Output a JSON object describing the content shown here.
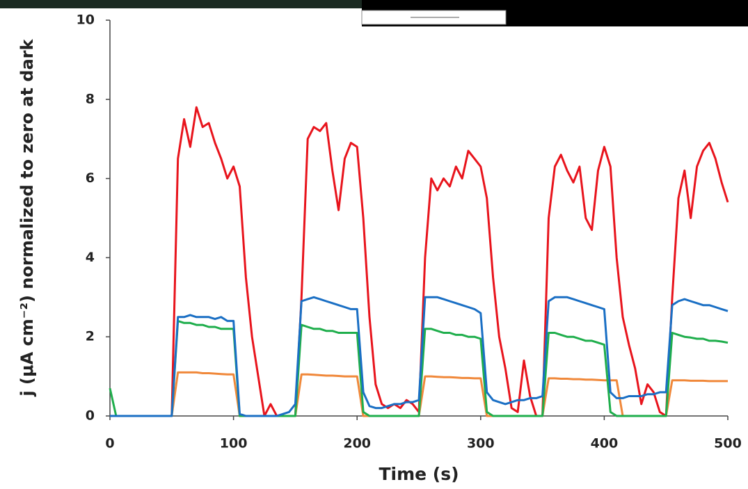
{
  "chart_data": {
    "type": "line",
    "ylabel": "j (μA cm⁻²) normalized to zero at dark",
    "xlabel": "Time (s)",
    "xlim": [
      0,
      500
    ],
    "xticks": [
      0,
      100,
      200,
      300,
      400,
      500
    ],
    "ylim": [
      0,
      10
    ],
    "yticks": [
      0,
      2,
      4,
      6,
      8,
      10
    ],
    "x": [
      0,
      5,
      10,
      15,
      20,
      25,
      30,
      35,
      40,
      45,
      50,
      55,
      60,
      65,
      70,
      75,
      80,
      85,
      90,
      95,
      100,
      105,
      110,
      115,
      120,
      125,
      130,
      135,
      140,
      145,
      150,
      155,
      160,
      165,
      170,
      175,
      180,
      185,
      190,
      195,
      200,
      205,
      210,
      215,
      220,
      225,
      230,
      235,
      240,
      245,
      250,
      255,
      260,
      265,
      270,
      275,
      280,
      285,
      290,
      295,
      300,
      305,
      310,
      315,
      320,
      325,
      330,
      335,
      340,
      345,
      350,
      355,
      360,
      365,
      370,
      375,
      380,
      385,
      390,
      395,
      400,
      405,
      410,
      415,
      420,
      425,
      430,
      435,
      440,
      445,
      450,
      455,
      460,
      465,
      470,
      475,
      480,
      485,
      490,
      495,
      500
    ],
    "series": [
      {
        "color": "#e8141c",
        "values": [
          0,
          0,
          0,
          0,
          0,
          0,
          0,
          0,
          0,
          0,
          0,
          6.5,
          7.5,
          6.8,
          7.8,
          7.3,
          7.4,
          6.9,
          6.5,
          6.0,
          6.3,
          5.8,
          3.5,
          2.0,
          1.0,
          0,
          0.3,
          0,
          0,
          0,
          0,
          3.0,
          7.0,
          7.3,
          7.2,
          7.4,
          6.2,
          5.2,
          6.5,
          6.9,
          6.8,
          5.0,
          2.5,
          0.8,
          0.3,
          0.2,
          0.3,
          0.2,
          0.4,
          0.3,
          0.1,
          4.0,
          6.0,
          5.7,
          6.0,
          5.8,
          6.3,
          6.0,
          6.7,
          6.5,
          6.3,
          5.5,
          3.5,
          2.0,
          1.2,
          0.2,
          0.1,
          1.4,
          0.5,
          0,
          0,
          5.0,
          6.3,
          6.6,
          6.2,
          5.9,
          6.3,
          5.0,
          4.7,
          6.2,
          6.8,
          6.3,
          4.0,
          2.5,
          1.8,
          1.2,
          0.3,
          0.8,
          0.6,
          0.1,
          0,
          3.0,
          5.5,
          6.2,
          5.0,
          6.3,
          6.7,
          6.9,
          6.5,
          5.9,
          5.4
        ]
      },
      {
        "color": "#f0883a",
        "values": [
          0,
          0,
          0,
          0,
          0,
          0,
          0,
          0,
          0,
          0,
          0,
          1.1,
          1.1,
          1.1,
          1.1,
          1.08,
          1.08,
          1.07,
          1.06,
          1.05,
          1.05,
          0,
          0,
          0,
          0,
          0,
          0,
          0,
          0,
          0,
          0,
          1.05,
          1.05,
          1.04,
          1.03,
          1.02,
          1.02,
          1.01,
          1.0,
          1.0,
          1.0,
          0,
          0,
          0,
          0,
          0,
          0,
          0,
          0,
          0,
          0,
          1.0,
          1.0,
          0.99,
          0.98,
          0.98,
          0.97,
          0.96,
          0.96,
          0.95,
          0.95,
          0,
          0,
          0,
          0,
          0,
          0,
          0,
          0,
          0,
          0,
          0.95,
          0.95,
          0.94,
          0.94,
          0.93,
          0.93,
          0.92,
          0.92,
          0.91,
          0.9,
          0.9,
          0.9,
          0,
          0,
          0,
          0,
          0,
          0,
          0,
          0,
          0.9,
          0.9,
          0.9,
          0.89,
          0.89,
          0.89,
          0.88,
          0.88,
          0.88,
          0.88
        ]
      },
      {
        "color": "#1fae4c",
        "values": [
          0.7,
          0,
          0,
          0,
          0,
          0,
          0,
          0,
          0,
          0,
          0,
          2.4,
          2.35,
          2.35,
          2.3,
          2.3,
          2.25,
          2.25,
          2.2,
          2.2,
          2.2,
          0,
          0,
          0,
          0,
          0,
          0,
          0,
          0,
          0,
          0,
          2.3,
          2.25,
          2.2,
          2.2,
          2.15,
          2.15,
          2.1,
          2.1,
          2.1,
          2.1,
          0.1,
          0,
          0,
          0,
          0,
          0,
          0,
          0,
          0,
          0,
          2.2,
          2.2,
          2.15,
          2.1,
          2.1,
          2.05,
          2.05,
          2.0,
          2.0,
          1.95,
          0.1,
          0,
          0,
          0,
          0,
          0,
          0,
          0,
          0,
          0,
          2.1,
          2.1,
          2.05,
          2.0,
          2.0,
          1.95,
          1.9,
          1.9,
          1.85,
          1.8,
          0.1,
          0,
          0,
          0,
          0,
          0,
          0,
          0,
          0,
          0,
          2.1,
          2.05,
          2.0,
          1.98,
          1.95,
          1.95,
          1.9,
          1.9,
          1.88,
          1.85
        ]
      },
      {
        "color": "#1a6fc4",
        "values": [
          0,
          0,
          0,
          0,
          0,
          0,
          0,
          0,
          0,
          0,
          0,
          2.5,
          2.5,
          2.55,
          2.5,
          2.5,
          2.5,
          2.45,
          2.5,
          2.4,
          2.4,
          0.05,
          0,
          0,
          0,
          0,
          0,
          0,
          0.05,
          0.1,
          0.3,
          2.9,
          2.95,
          3.0,
          2.95,
          2.9,
          2.85,
          2.8,
          2.75,
          2.7,
          2.7,
          0.6,
          0.25,
          0.2,
          0.2,
          0.25,
          0.3,
          0.3,
          0.35,
          0.35,
          0.4,
          3.0,
          3.0,
          3.0,
          2.95,
          2.9,
          2.85,
          2.8,
          2.75,
          2.7,
          2.6,
          0.6,
          0.4,
          0.35,
          0.3,
          0.35,
          0.4,
          0.4,
          0.45,
          0.45,
          0.5,
          2.9,
          3.0,
          3.0,
          3.0,
          2.95,
          2.9,
          2.85,
          2.8,
          2.75,
          2.7,
          0.6,
          0.45,
          0.45,
          0.5,
          0.5,
          0.5,
          0.55,
          0.55,
          0.6,
          0.6,
          2.8,
          2.9,
          2.95,
          2.9,
          2.85,
          2.8,
          2.8,
          2.75,
          2.7,
          2.65
        ]
      }
    ]
  }
}
